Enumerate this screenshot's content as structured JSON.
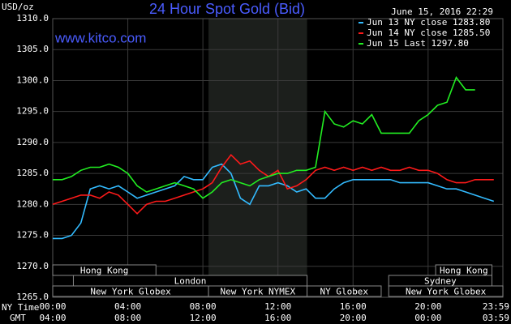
{
  "chart_data": {
    "type": "line",
    "title": "24 Hour Spot Gold (Bid)",
    "site": "www.kitco.com",
    "timestamp": "June 15, 2016 22:29",
    "y_label": "USD/oz",
    "x_label": "NY Time",
    "x2_label": "GMT",
    "grid": true,
    "x": [
      0,
      0.5,
      1,
      1.5,
      2,
      2.5,
      3,
      3.5,
      4,
      4.5,
      5,
      5.5,
      6,
      6.5,
      7,
      7.5,
      8,
      8.5,
      9,
      9.5,
      10,
      10.5,
      11,
      11.5,
      12,
      12.5,
      13,
      13.5,
      14,
      14.5,
      15,
      15.5,
      16,
      16.5,
      17,
      17.5,
      18,
      18.5,
      19,
      19.5,
      20,
      20.5,
      21,
      21.5,
      22,
      22.5,
      23,
      23.5
    ],
    "series": [
      {
        "name": "Jun 13 NY close 1283.80",
        "color": "#33bbff",
        "values": [
          1274.5,
          1274.5,
          1275,
          1277,
          1282.5,
          1283,
          1282.5,
          1283,
          1282,
          1281,
          1281.5,
          1282,
          1282.5,
          1283,
          1284.5,
          1284,
          1284,
          1286,
          1286.5,
          1285,
          1281,
          1280,
          1283,
          1283,
          1283.5,
          1283,
          1282,
          1282.5,
          1281,
          1281,
          1282.5,
          1283.5,
          1284,
          1284,
          1284,
          1284,
          1284,
          1283.5,
          1283.5,
          1283.5,
          1283.5,
          1283,
          1282.5,
          1282.5,
          1282,
          1281.5,
          1281,
          1280.5
        ]
      },
      {
        "name": "Jun 14 NY close 1285.50",
        "color": "#ff1a1a",
        "values": [
          1280,
          1280.5,
          1281,
          1281.5,
          1281.5,
          1281,
          1282,
          1281.5,
          1280,
          1278.5,
          1280,
          1280.5,
          1280.5,
          1281,
          1281.5,
          1282,
          1282.5,
          1283.5,
          1286,
          1288,
          1286.5,
          1287,
          1285.5,
          1284.5,
          1285.5,
          1282.5,
          1283,
          1284,
          1285.5,
          1286,
          1285.5,
          1286,
          1285.5,
          1286,
          1285.5,
          1286,
          1285.5,
          1285.5,
          1286,
          1285.5,
          1285.5,
          1285,
          1284,
          1283.5,
          1283.5,
          1284,
          1284,
          1284
        ]
      },
      {
        "name": "Jun 15 Last 1297.80",
        "color": "#22ee22",
        "values": [
          1284,
          1284,
          1284.5,
          1285.5,
          1286,
          1286,
          1286.5,
          1286,
          1285,
          1283,
          1282,
          1282.5,
          1283,
          1283.5,
          1283,
          1282.5,
          1281,
          1282,
          1283.5,
          1284,
          1283.5,
          1283,
          1284,
          1284.5,
          1285,
          1285,
          1285.5,
          1285.5,
          1286,
          1295,
          1293,
          1292.5,
          1293.5,
          1293,
          1294.5,
          1291.5,
          1291.5,
          1291.5,
          1291.5,
          1293.5,
          1294.5,
          1296,
          1296.5,
          1300.5,
          1298.5,
          1298.5,
          null,
          null
        ]
      }
    ],
    "xlim": [
      0,
      23.983
    ],
    "ylim": [
      1265,
      1310
    ],
    "yticks": [
      {
        "value": 1265,
        "label": "1265.0"
      },
      {
        "value": 1270,
        "label": "1270.0"
      },
      {
        "value": 1275,
        "label": "1275.0"
      },
      {
        "value": 1280,
        "label": "1280.0"
      },
      {
        "value": 1285,
        "label": "1285.0"
      },
      {
        "value": 1290,
        "label": "1290.0"
      },
      {
        "value": 1295,
        "label": "1295.0"
      },
      {
        "value": 1300,
        "label": "1300.0"
      },
      {
        "value": 1305,
        "label": "1305.0"
      },
      {
        "value": 1310,
        "label": "1310.0"
      }
    ],
    "xticks": [
      {
        "value": 0,
        "label": "00:00"
      },
      {
        "value": 4,
        "label": "04:00"
      },
      {
        "value": 8,
        "label": "08:00"
      },
      {
        "value": 12,
        "label": "12:00"
      },
      {
        "value": 16,
        "label": "16:00"
      },
      {
        "value": 20,
        "label": "20:00"
      },
      {
        "value": 23.983,
        "label": "23:59"
      }
    ],
    "xticks_gmt": [
      "04:00",
      "08:00",
      "12:00",
      "16:00",
      "20:00",
      "00:00",
      "03:59"
    ],
    "sessions": [
      {
        "label": "Hong Kong",
        "row": 0,
        "start": 0,
        "end": 5.5
      },
      {
        "label": "London",
        "row": 1,
        "start": 1.1,
        "end": 13.55
      },
      {
        "label": "New York Globex",
        "row": 2,
        "start": 0,
        "end": 8.3
      },
      {
        "label": "New York NYMEX",
        "row": 2,
        "start": 8.3,
        "end": 13.55,
        "shaded": true
      },
      {
        "label": "NY Globex",
        "row": 2,
        "start": 13.55,
        "end": 17.5
      },
      {
        "label": "Sydney",
        "row": 1,
        "start": 17.9,
        "end": 23.4
      },
      {
        "label": "Hong Kong",
        "row": 0,
        "start": 20.4,
        "end": 23.4
      },
      {
        "label": "New York Globex",
        "row": 2,
        "start": 17.9,
        "end": 23.983
      }
    ]
  }
}
